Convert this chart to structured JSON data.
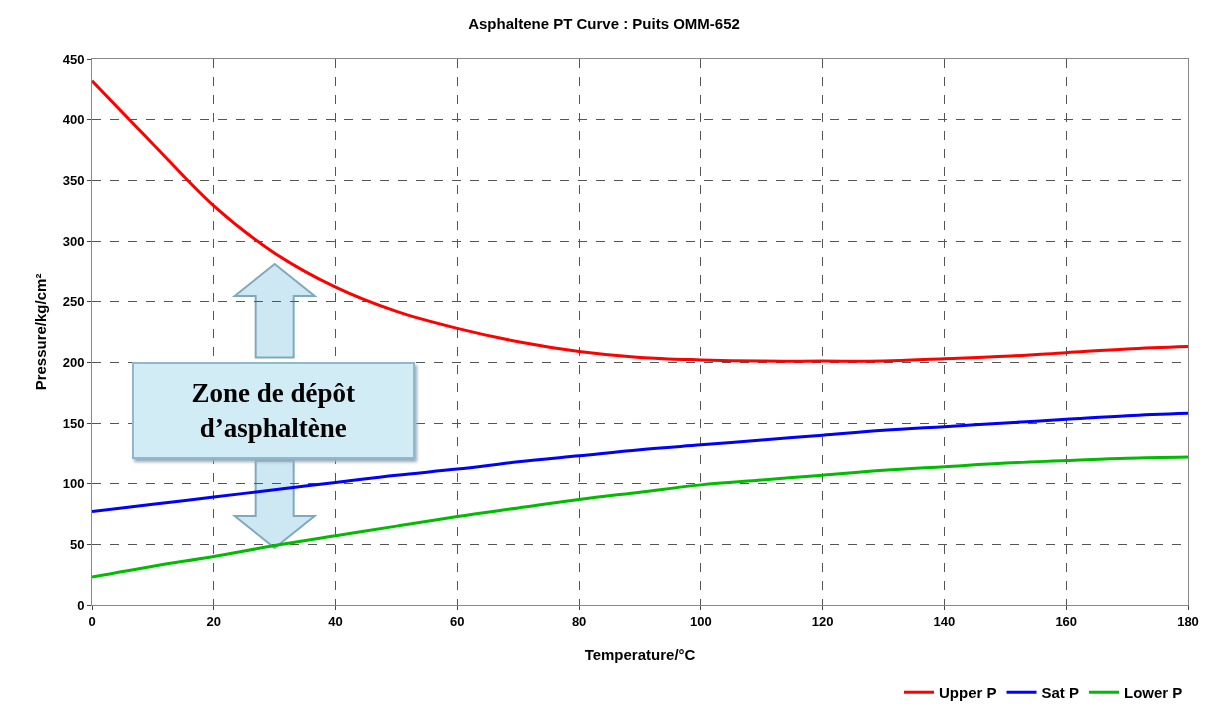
{
  "chart_data": {
    "type": "line",
    "title": "Asphaltene PT Curve : Puits OMM-652",
    "xlabel": "Temperature/°C",
    "ylabel": "Pressure/kg/cm²",
    "x": [
      0,
      10,
      20,
      30,
      40,
      50,
      60,
      70,
      80,
      90,
      100,
      110,
      120,
      130,
      140,
      150,
      160,
      170,
      180
    ],
    "series": [
      {
        "name": "Upper P",
        "color": "#ff0000",
        "values": [
          432,
          380,
          329,
          290,
          262,
          242,
          228,
          217,
          209,
          204,
          202,
          201,
          201,
          201,
          203,
          205,
          208,
          211,
          213
        ]
      },
      {
        "name": "Sat P",
        "color": "#0000ff",
        "values": [
          77,
          83,
          89,
          95,
          101,
          107,
          112,
          118,
          123,
          128,
          132,
          136,
          140,
          144,
          147,
          150,
          153,
          156,
          158
        ]
      },
      {
        "name": "Lower P",
        "color": "#00bb00",
        "values": [
          23,
          32,
          40,
          49,
          57,
          65,
          73,
          80,
          87,
          93,
          99,
          103,
          107,
          111,
          114,
          117,
          119,
          121,
          122
        ]
      }
    ],
    "xlim": [
      0,
      180
    ],
    "xticks": [
      0,
      20,
      40,
      60,
      80,
      100,
      120,
      140,
      160,
      180
    ],
    "ylim": [
      0,
      450
    ],
    "yticks": [
      0,
      50,
      100,
      150,
      200,
      250,
      300,
      350,
      400,
      450
    ],
    "grid": true,
    "legend": "bottom right",
    "line_style": "solid",
    "marker": "none",
    "annotations": [
      "Zone de dépôt d’asphaltène"
    ]
  }
}
